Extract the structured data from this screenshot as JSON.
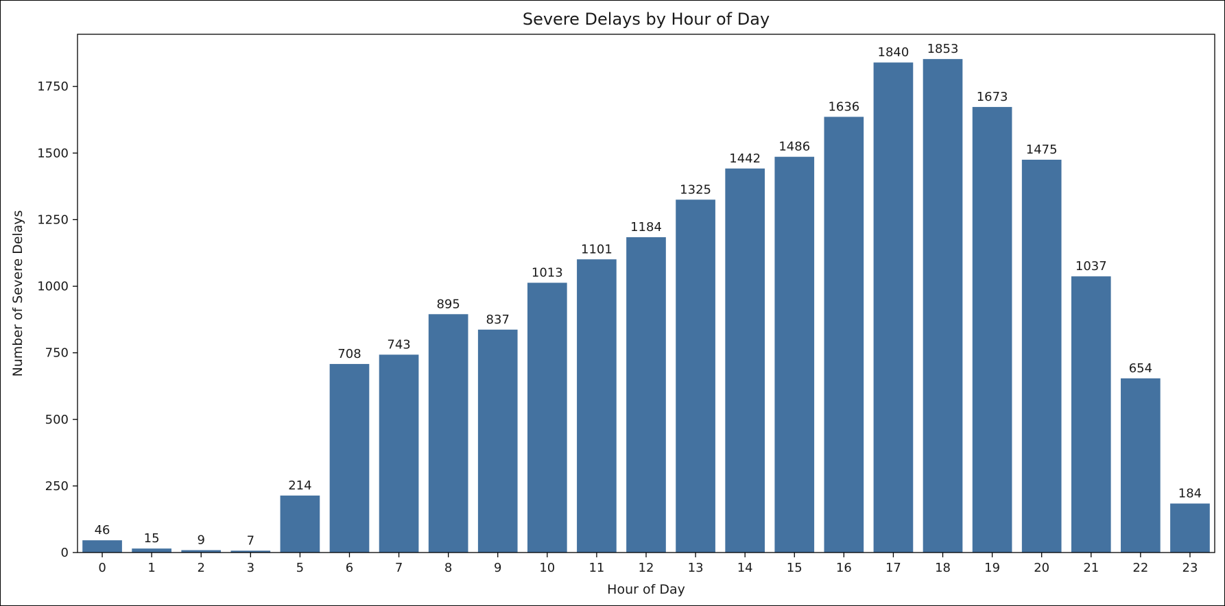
{
  "chart_data": {
    "type": "bar",
    "title": "Severe Delays by Hour of Day",
    "xlabel": "Hour of Day",
    "ylabel": "Number of Severe Delays",
    "categories": [
      "0",
      "1",
      "2",
      "3",
      "5",
      "6",
      "7",
      "8",
      "9",
      "10",
      "11",
      "12",
      "13",
      "14",
      "15",
      "16",
      "17",
      "18",
      "19",
      "20",
      "21",
      "22",
      "23"
    ],
    "values": [
      46,
      15,
      9,
      7,
      214,
      708,
      743,
      895,
      837,
      1013,
      1101,
      1184,
      1325,
      1442,
      1486,
      1636,
      1840,
      1853,
      1673,
      1475,
      1037,
      654,
      184
    ],
    "data_labels": [
      "46",
      "15",
      "9",
      "7",
      "214",
      "708",
      "743",
      "895",
      "837",
      "1013",
      "1101",
      "1184",
      "1325",
      "1442",
      "1486",
      "1636",
      "1840",
      "1853",
      "1673",
      "1475",
      "1037",
      "654",
      "184"
    ],
    "ylim": [
      0,
      1946
    ],
    "yticks": [
      0,
      250,
      500,
      750,
      1000,
      1250,
      1500,
      1750
    ],
    "ytick_labels": [
      "0",
      "250",
      "500",
      "750",
      "1000",
      "1250",
      "1500",
      "1750"
    ],
    "grid": false,
    "bar_color": "#4472a0"
  }
}
